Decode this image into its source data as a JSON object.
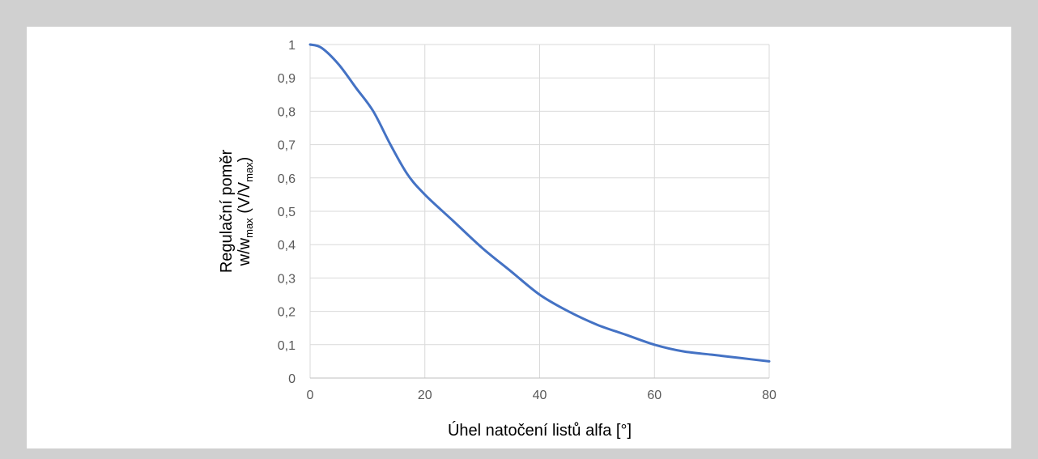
{
  "chart_data": {
    "type": "line",
    "xlabel": "Úhel natočení listů alfa [°]",
    "ylabel": {
      "line1": "Regulační poměr",
      "line2_parts": [
        "w/w",
        "max",
        " (V/V",
        "max",
        ")"
      ]
    },
    "xlim": [
      0,
      80
    ],
    "ylim": [
      0,
      1
    ],
    "x_ticks": [
      0,
      20,
      40,
      60,
      80
    ],
    "x_tick_labels": [
      "0",
      "20",
      "40",
      "60",
      "80"
    ],
    "y_ticks": [
      0,
      0.1,
      0.2,
      0.3,
      0.4,
      0.5,
      0.6,
      0.7,
      0.8,
      0.9,
      1
    ],
    "y_tick_labels": [
      "0",
      "0,1",
      "0,2",
      "0,3",
      "0,4",
      "0,5",
      "0,6",
      "0,7",
      "0,8",
      "0,9",
      "1"
    ],
    "grid": true,
    "series": [
      {
        "color": "#4472c4",
        "x": [
          0,
          2,
          5,
          8,
          11,
          14,
          17,
          20,
          25,
          30,
          35,
          40,
          45,
          50,
          55,
          60,
          65,
          70,
          75,
          80
        ],
        "y": [
          1,
          0.99,
          0.94,
          0.87,
          0.8,
          0.7,
          0.61,
          0.55,
          0.47,
          0.39,
          0.32,
          0.25,
          0.2,
          0.16,
          0.13,
          0.1,
          0.08,
          0.07,
          0.06,
          0.05
        ]
      }
    ]
  }
}
